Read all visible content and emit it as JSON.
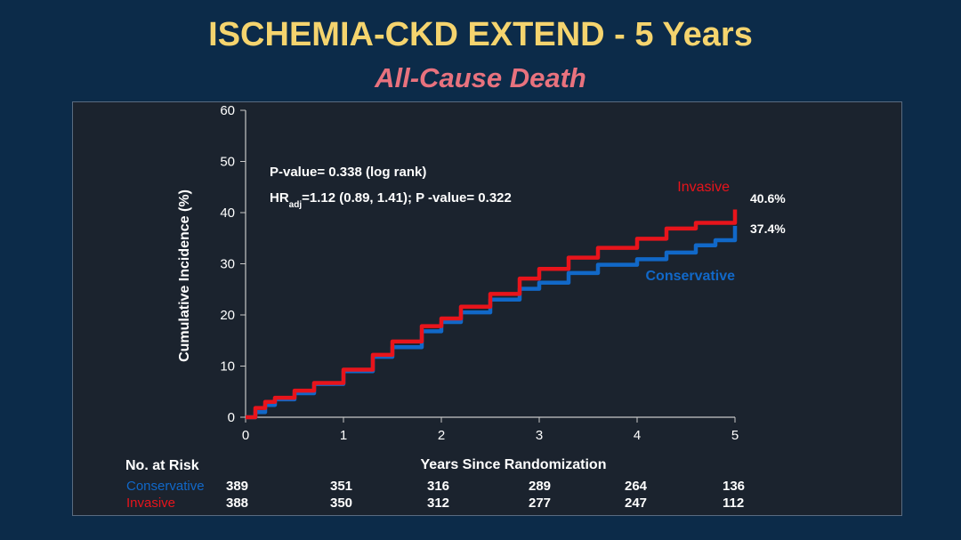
{
  "title": "ISCHEMIA-CKD EXTEND - 5 Years",
  "subtitle": "All-Cause Death",
  "colors": {
    "invasive": "#e8141b",
    "conservative": "#1168c8",
    "title": "#f5d46e",
    "subtitle": "#e8727e"
  },
  "chart_data": {
    "type": "line",
    "xlabel": "Years Since Randomization",
    "ylabel": "Cumulative Incidence (%)",
    "xlim": [
      0,
      5
    ],
    "ylim": [
      0,
      60
    ],
    "xticks": [
      "0",
      "1",
      "2",
      "3",
      "4",
      "5"
    ],
    "yticks": [
      "0",
      "10",
      "20",
      "30",
      "40",
      "50",
      "60"
    ],
    "annotations": {
      "pvalue": "P-value= 0.338 (log rank)",
      "hr_prefix": "HR",
      "hr_sub": "adj",
      "hr_rest": "=1.12 (0.89, 1.41); P -value= 0.322"
    },
    "series": [
      {
        "name": "Invasive",
        "end_label": "40.6%",
        "x": [
          0,
          0.1,
          0.2,
          0.3,
          0.5,
          0.7,
          1.0,
          1.3,
          1.5,
          1.8,
          2.0,
          2.2,
          2.5,
          2.8,
          3.0,
          3.3,
          3.6,
          4.0,
          4.3,
          4.6,
          5.0
        ],
        "y": [
          0,
          1.8,
          3.0,
          3.8,
          5.2,
          6.7,
          9.3,
          12.2,
          14.8,
          17.8,
          19.3,
          21.6,
          24.1,
          27.1,
          29.0,
          31.2,
          33.1,
          34.9,
          36.9,
          38.0,
          40.6
        ]
      },
      {
        "name": "Conservative",
        "end_label": "37.4%",
        "x": [
          0,
          0.1,
          0.2,
          0.3,
          0.5,
          0.7,
          1.0,
          1.3,
          1.5,
          1.8,
          2.0,
          2.2,
          2.5,
          2.8,
          3.0,
          3.3,
          3.6,
          4.0,
          4.3,
          4.6,
          4.8,
          5.0
        ],
        "y": [
          0,
          1.0,
          2.4,
          3.5,
          4.7,
          6.5,
          9.0,
          11.8,
          13.7,
          16.8,
          18.6,
          20.5,
          23.0,
          25.1,
          26.3,
          28.2,
          29.8,
          30.9,
          32.2,
          33.6,
          34.6,
          37.4
        ]
      }
    ]
  },
  "risk_table": {
    "header": "No. at Risk",
    "rows": [
      {
        "label": "Conservative",
        "values": [
          "389",
          "351",
          "316",
          "289",
          "264",
          "136"
        ]
      },
      {
        "label": "Invasive",
        "values": [
          "388",
          "350",
          "312",
          "277",
          "247",
          "112"
        ]
      }
    ]
  }
}
